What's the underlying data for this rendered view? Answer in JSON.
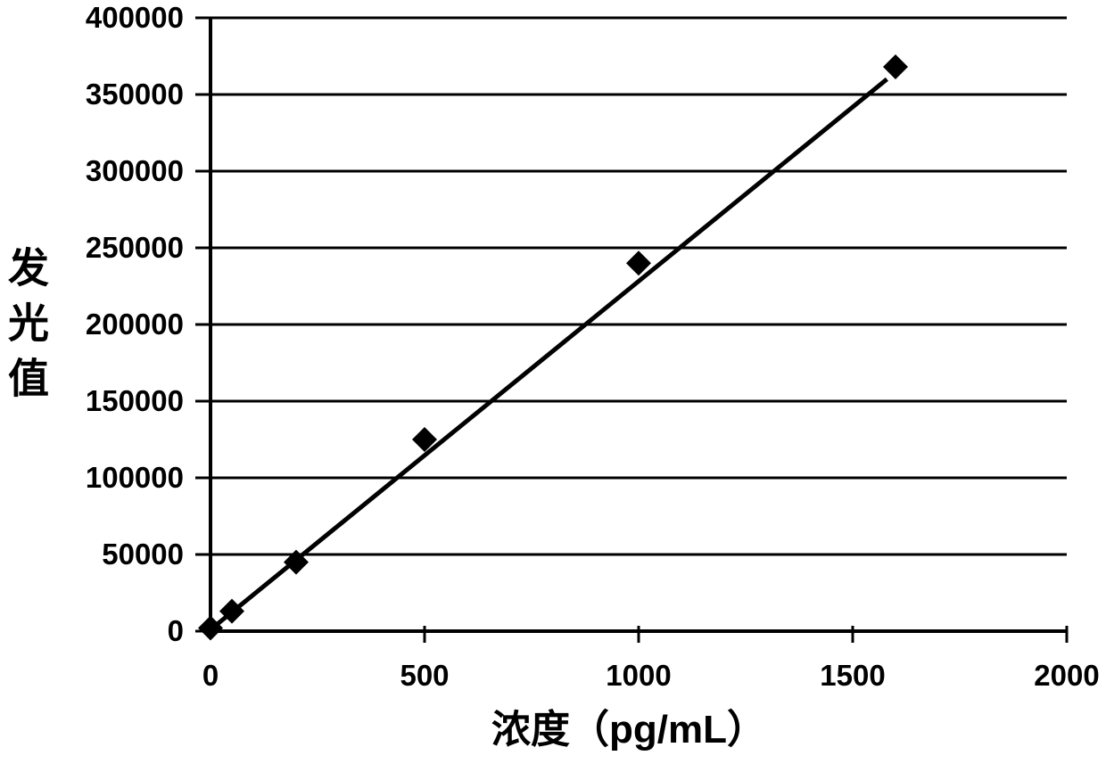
{
  "chart_data": {
    "type": "scatter",
    "title": "",
    "xlabel": "浓度（pg/mL）",
    "ylabel": "发光值",
    "x": [
      0,
      50,
      200,
      500,
      1000,
      1600
    ],
    "y": [
      2000,
      13000,
      45000,
      125000,
      240000,
      368000
    ],
    "x_ticks": [
      0,
      500,
      1000,
      1500,
      2000
    ],
    "y_ticks": [
      0,
      50000,
      100000,
      150000,
      200000,
      250000,
      300000,
      350000,
      400000
    ],
    "xlim": [
      0,
      2000
    ],
    "ylim": [
      0,
      400000
    ],
    "grid": "horizontal-only",
    "legend": "none",
    "marker": "diamond",
    "marker_color": "#000000",
    "line_color": "#000000",
    "background_color": "#ffffff",
    "trendline": {
      "x_start": 0,
      "y_start": 1000,
      "x_end": 1580,
      "y_end": 360000
    }
  }
}
